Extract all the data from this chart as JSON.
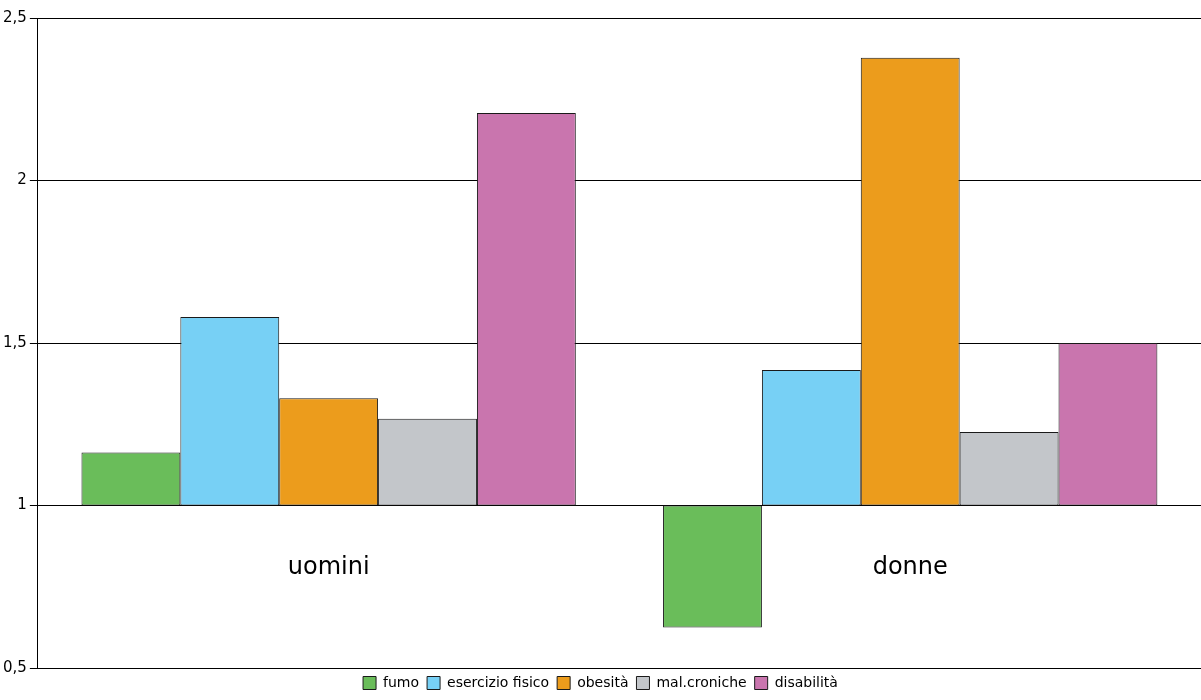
{
  "chart_data": {
    "type": "bar",
    "categories": [
      "uomini",
      "donne"
    ],
    "series": [
      {
        "name": "fumo",
        "color": "#6abd5a",
        "base": [
          1,
          1
        ],
        "values": [
          0.163,
          -0.375
        ]
      },
      {
        "name": "esercizio fisico",
        "color": "#77d0f5",
        "base": [
          1,
          1
        ],
        "values": [
          0.58,
          0.417
        ]
      },
      {
        "name": "obesità",
        "color": "#ec9c1c",
        "base": [
          1,
          1
        ],
        "values": [
          0.33,
          1.378
        ]
      },
      {
        "name": "mal.croniche",
        "color": "#c3c6ca",
        "base": [
          1,
          1
        ],
        "values": [
          0.267,
          0.226
        ]
      },
      {
        "name": "disabilità",
        "color": "#c975ae",
        "base": [
          1,
          1
        ],
        "values": [
          1.208,
          0.5
        ]
      }
    ],
    "ylim": [
      0.5,
      2.5
    ],
    "yticks": [
      {
        "value": 0.5,
        "label": "0,5"
      },
      {
        "value": 1,
        "label": "1"
      },
      {
        "value": 1.5,
        "label": "1,5"
      },
      {
        "value": 2,
        "label": "2"
      },
      {
        "value": 2.5,
        "label": "2,5"
      }
    ],
    "grid": "y",
    "legend": "bottom"
  }
}
